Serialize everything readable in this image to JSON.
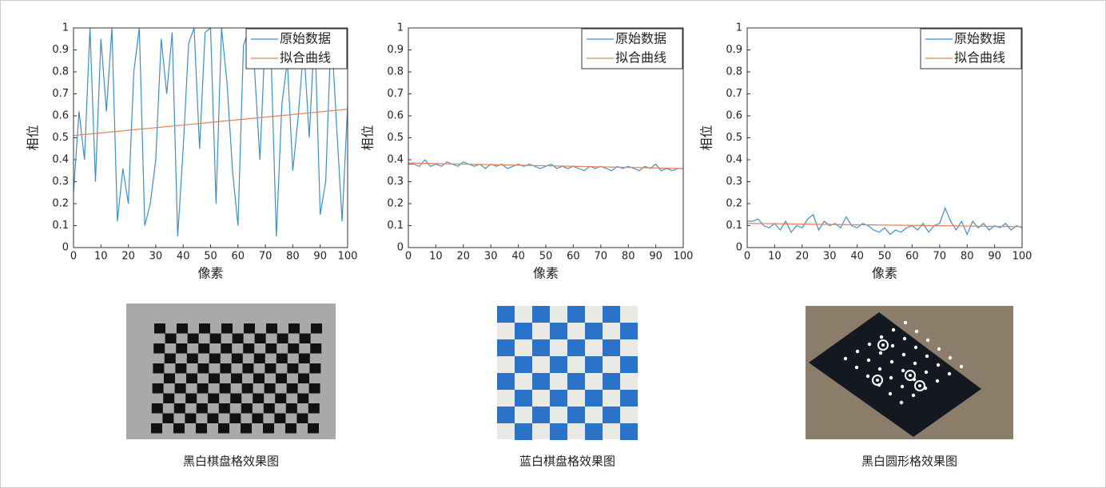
{
  "chart_data": [
    {
      "type": "line",
      "xlabel": "像素",
      "ylabel": "相位",
      "xlim": [
        0,
        100
      ],
      "ylim": [
        0,
        1
      ],
      "xticks": [
        0,
        10,
        20,
        30,
        40,
        50,
        60,
        70,
        80,
        90,
        100
      ],
      "yticks": [
        0,
        0.1,
        0.2,
        0.3,
        0.4,
        0.5,
        0.6,
        0.7,
        0.8,
        0.9,
        1
      ],
      "series": [
        {
          "name": "原始数据",
          "color": "#3d8fc0",
          "x": [
            0,
            2,
            4,
            6,
            8,
            10,
            12,
            14,
            16,
            18,
            20,
            22,
            24,
            26,
            28,
            30,
            32,
            34,
            36,
            38,
            40,
            42,
            44,
            46,
            48,
            50,
            52,
            54,
            56,
            58,
            60,
            62,
            64,
            66,
            68,
            70,
            72,
            74,
            76,
            78,
            80,
            82,
            84,
            86,
            88,
            90,
            92,
            94,
            96,
            98,
            100
          ],
          "values": [
            0.25,
            0.62,
            0.4,
            1,
            0.3,
            0.95,
            0.62,
            1,
            0.12,
            0.36,
            0.2,
            0.8,
            1,
            0.1,
            0.2,
            0.4,
            0.95,
            0.7,
            0.98,
            0.05,
            0.45,
            0.93,
            1,
            0.45,
            0.98,
            1,
            0.2,
            1,
            0.75,
            0.35,
            0.1,
            0.92,
            1,
            0.82,
            0.4,
            0.98,
            0.9,
            0.05,
            0.65,
            0.85,
            0.35,
            0.6,
            0.92,
            0.5,
            1,
            0.15,
            0.3,
            1,
            0.55,
            0.12,
            0.65
          ]
        },
        {
          "name": "拟合曲线",
          "color": "#e5815a",
          "x": [
            0,
            100
          ],
          "values": [
            0.51,
            0.63
          ]
        }
      ]
    },
    {
      "type": "line",
      "xlabel": "像素",
      "ylabel": "相位",
      "xlim": [
        0,
        100
      ],
      "ylim": [
        0,
        1
      ],
      "xticks": [
        0,
        10,
        20,
        30,
        40,
        50,
        60,
        70,
        80,
        90,
        100
      ],
      "yticks": [
        0,
        0.1,
        0.2,
        0.3,
        0.4,
        0.5,
        0.6,
        0.7,
        0.8,
        0.9,
        1
      ],
      "series": [
        {
          "name": "原始数据",
          "color": "#3d8fc0",
          "x": [
            0,
            2,
            4,
            6,
            8,
            10,
            12,
            14,
            16,
            18,
            20,
            22,
            24,
            26,
            28,
            30,
            32,
            34,
            36,
            38,
            40,
            42,
            44,
            46,
            48,
            50,
            52,
            54,
            56,
            58,
            60,
            62,
            64,
            66,
            68,
            70,
            72,
            74,
            76,
            78,
            80,
            82,
            84,
            86,
            88,
            90,
            92,
            94,
            96,
            98,
            100
          ],
          "values": [
            0.38,
            0.38,
            0.37,
            0.4,
            0.37,
            0.38,
            0.37,
            0.39,
            0.38,
            0.37,
            0.39,
            0.38,
            0.37,
            0.38,
            0.36,
            0.38,
            0.37,
            0.38,
            0.36,
            0.37,
            0.38,
            0.37,
            0.38,
            0.37,
            0.36,
            0.37,
            0.38,
            0.36,
            0.37,
            0.36,
            0.37,
            0.36,
            0.35,
            0.37,
            0.36,
            0.37,
            0.36,
            0.35,
            0.37,
            0.36,
            0.37,
            0.36,
            0.35,
            0.37,
            0.36,
            0.38,
            0.35,
            0.36,
            0.35,
            0.36,
            0.36
          ]
        },
        {
          "name": "拟合曲线",
          "color": "#e5815a",
          "x": [
            0,
            100
          ],
          "values": [
            0.385,
            0.36
          ]
        }
      ]
    },
    {
      "type": "line",
      "xlabel": "像素",
      "ylabel": "相位",
      "xlim": [
        0,
        100
      ],
      "ylim": [
        0,
        1
      ],
      "xticks": [
        0,
        10,
        20,
        30,
        40,
        50,
        60,
        70,
        80,
        90,
        100
      ],
      "yticks": [
        0,
        0.1,
        0.2,
        0.3,
        0.4,
        0.5,
        0.6,
        0.7,
        0.8,
        0.9,
        1
      ],
      "series": [
        {
          "name": "原始数据",
          "color": "#3d8fc0",
          "x": [
            0,
            2,
            4,
            6,
            8,
            10,
            12,
            14,
            16,
            18,
            20,
            22,
            24,
            26,
            28,
            30,
            32,
            34,
            36,
            38,
            40,
            42,
            44,
            46,
            48,
            50,
            52,
            54,
            56,
            58,
            60,
            62,
            64,
            66,
            68,
            70,
            72,
            74,
            76,
            78,
            80,
            82,
            84,
            86,
            88,
            90,
            92,
            94,
            96,
            98,
            100
          ],
          "values": [
            0.12,
            0.12,
            0.13,
            0.1,
            0.09,
            0.11,
            0.08,
            0.12,
            0.07,
            0.1,
            0.09,
            0.13,
            0.15,
            0.08,
            0.12,
            0.1,
            0.11,
            0.09,
            0.14,
            0.1,
            0.09,
            0.11,
            0.1,
            0.08,
            0.07,
            0.09,
            0.06,
            0.08,
            0.07,
            0.09,
            0.1,
            0.08,
            0.11,
            0.07,
            0.1,
            0.11,
            0.18,
            0.12,
            0.08,
            0.12,
            0.06,
            0.12,
            0.09,
            0.11,
            0.08,
            0.1,
            0.09,
            0.11,
            0.08,
            0.1,
            0.09
          ]
        },
        {
          "name": "拟合曲线",
          "color": "#e5815a",
          "x": [
            0,
            100
          ],
          "values": [
            0.11,
            0.095
          ]
        }
      ]
    }
  ],
  "captions": [
    "黑白棋盘格效果图",
    "蓝白棋盘格效果图",
    "黑白圆形格效果图"
  ]
}
